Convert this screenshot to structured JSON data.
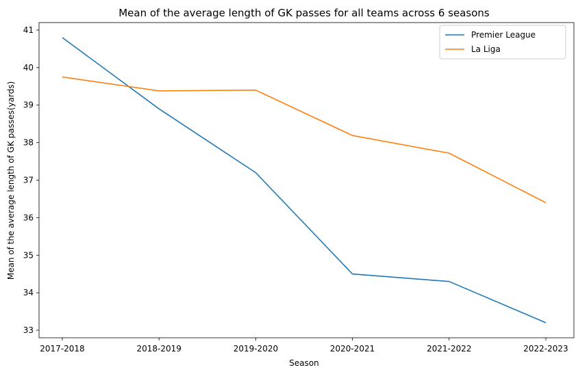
{
  "chart_data": {
    "type": "line",
    "title": "Mean of the average length of GK passes for all teams across 6 seasons",
    "xlabel": "Season",
    "ylabel": "Mean of the average length of GK passes(yards)",
    "categories": [
      "2017-2018",
      "2018-2019",
      "2019-2020",
      "2020-2021",
      "2021-2022",
      "2022-2023"
    ],
    "ylim": [
      32.8,
      41.2
    ],
    "yticks": [
      "33",
      "34",
      "35",
      "36",
      "37",
      "38",
      "39",
      "40",
      "41"
    ],
    "grid": false,
    "legend_position": "upper right",
    "series": [
      {
        "name": "Premier League",
        "color": "#1f77b4",
        "values": [
          40.8,
          38.9,
          37.2,
          34.5,
          34.3,
          33.2
        ]
      },
      {
        "name": "La Liga",
        "color": "#ff7f0e",
        "values": [
          39.75,
          39.38,
          39.4,
          38.19,
          37.72,
          36.4
        ]
      }
    ]
  }
}
